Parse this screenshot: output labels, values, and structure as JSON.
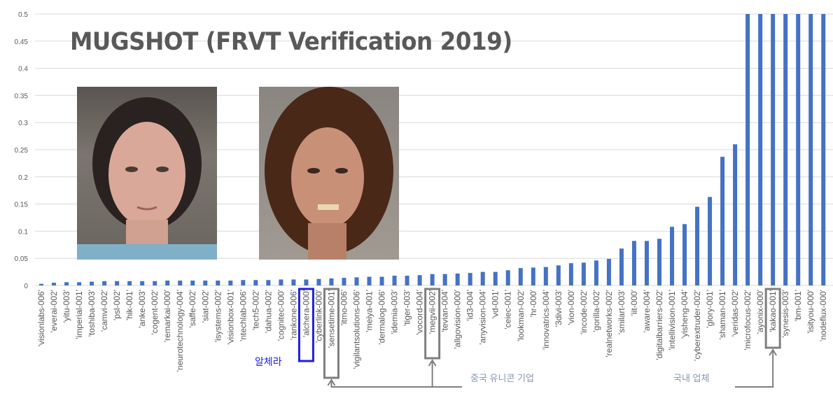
{
  "chart_data": {
    "type": "bar",
    "title": "MUGSHOT (FRVT Verification 2019)",
    "xlabel": "",
    "ylabel": "",
    "ylim": [
      0,
      0.5
    ],
    "yticks": [
      "0",
      "0.05",
      "0.1",
      "0.15",
      "0.2",
      "0.25",
      "0.3",
      "0.35",
      "0.4",
      "0.45",
      "0.5"
    ],
    "grid": true,
    "bar_color": "#4472C4",
    "categories": [
      "'visionlabs-006'",
      "'everai-002'",
      "'yitu-003'",
      "'imperial-001'",
      "'toshiba-003'",
      "'camvi-002'",
      "'psl-002'",
      "'hik-001'",
      "'anke-003'",
      "'cogent-002'",
      "'remarkai-000'",
      "'neurotechnology-004'",
      "'saffe-002'",
      "'siat-002'",
      "'isystems-002'",
      "'visionbox-001'",
      "'ntechlab-006'",
      "'tech5-002'",
      "'dahua-002'",
      "'cognitec-000'",
      "'rankone-006'",
      "'alchera-000'",
      "'cyberlink-000'",
      "'sensetime-001'",
      "'itmo-006'",
      "'vigilantsolutions-006'",
      "'meiya-001'",
      "'dermalog-006'",
      "'idemia-003'",
      "'tiger-003'",
      "'vocord-004'",
      "'megvii-002'",
      "'tevian-004'",
      "'allgovision-000'",
      "'id3-004'",
      "'anyvision-004'",
      "'vd-001'",
      "'ceiec-001'",
      "'lookman-002'",
      "'hr-000'",
      "'innovatrics-004'",
      "'3divi-003'",
      "'vion-000'",
      "'incode-002'",
      "'gorilla-002'",
      "'realnetworks-002'",
      "'smilart-003'",
      "'iit-000'",
      "'aware-004'",
      "'digitalbarriers-002'",
      "'intellivision-001'",
      "'yisheng-004'",
      "'cyberextruder-002'",
      "'glory-001'",
      "'shaman-001'",
      "'veridas-002'",
      "'microfocus-002'",
      "'ayonix-000'",
      "'kakao-001'",
      "'synesis-003'",
      "'bm-001'",
      "'isityou-000'",
      "'nodeflux-000'"
    ],
    "values": [
      0.003,
      0.005,
      0.006,
      0.006,
      0.007,
      0.008,
      0.008,
      0.008,
      0.008,
      0.008,
      0.009,
      0.009,
      0.009,
      0.009,
      0.009,
      0.009,
      0.01,
      0.01,
      0.01,
      0.011,
      0.011,
      0.011,
      0.012,
      0.013,
      0.014,
      0.015,
      0.016,
      0.016,
      0.018,
      0.018,
      0.019,
      0.021,
      0.021,
      0.022,
      0.023,
      0.025,
      0.025,
      0.028,
      0.032,
      0.033,
      0.034,
      0.037,
      0.041,
      0.042,
      0.046,
      0.049,
      0.068,
      0.082,
      0.082,
      0.086,
      0.108,
      0.113,
      0.145,
      0.163,
      0.237,
      0.26,
      0.5,
      0.5,
      0.5,
      0.5,
      0.5,
      0.5,
      0.5
    ]
  },
  "annotations": {
    "alchera_label": "알체라",
    "china_label": "중국 유니콘 기업",
    "korea_label": "국내 업체",
    "alchera_color": "#1F1FE0",
    "highlight_color": "#7F7F7F"
  }
}
